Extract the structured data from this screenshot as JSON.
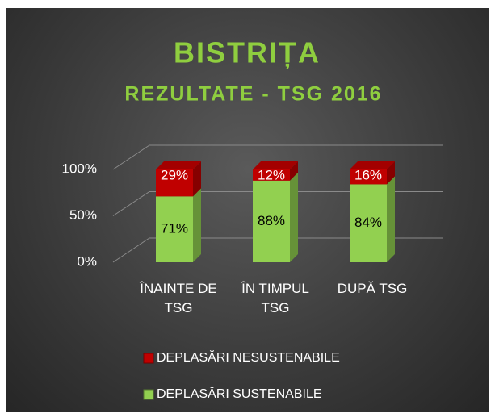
{
  "chart_data": {
    "type": "bar",
    "stacked": true,
    "title": "BISTRIȚA",
    "subtitle": "REZULTATE - TSG 2016",
    "categories": [
      "ÎNAINTE DE TSG",
      "ÎN TIMPUL TSG",
      "DUPĂ TSG"
    ],
    "series": [
      {
        "name": "DEPLASĂRI SUSTENABILE",
        "color": "#92d050",
        "values": [
          71,
          88,
          84
        ],
        "value_labels": [
          "71%",
          "88%",
          "84%"
        ]
      },
      {
        "name": "DEPLASĂRI NESUSTENABILE",
        "color": "#c00000",
        "values": [
          29,
          12,
          16
        ],
        "value_labels": [
          "29%",
          "12%",
          "16%"
        ]
      }
    ],
    "ylim": [
      0,
      100
    ],
    "yticks": [
      {
        "value": 0,
        "label": "0%"
      },
      {
        "value": 50,
        "label": "50%"
      },
      {
        "value": 100,
        "label": "100%"
      }
    ],
    "grid": true,
    "legend": "bottom"
  }
}
